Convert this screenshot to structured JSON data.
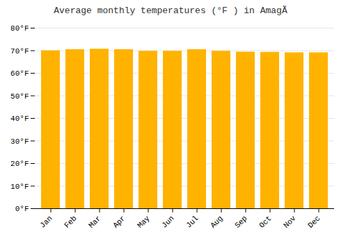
{
  "chart_data": {
    "type": "bar",
    "title": "Average monthly temperatures (°F ) in AmagÃ",
    "categories": [
      "Jan",
      "Feb",
      "Mar",
      "Apr",
      "May",
      "Jun",
      "Jul",
      "Aug",
      "Sep",
      "Oct",
      "Nov",
      "Dec"
    ],
    "values": [
      70.0,
      70.5,
      70.7,
      70.5,
      69.8,
      69.8,
      70.5,
      69.8,
      69.4,
      69.3,
      69.1,
      69.1
    ],
    "color": "#FFB300",
    "ylim": [
      0,
      80
    ],
    "yticks": [
      {
        "value": 0,
        "label": "0°F"
      },
      {
        "value": 10,
        "label": "10°F"
      },
      {
        "value": 20,
        "label": "20°F"
      },
      {
        "value": 30,
        "label": "30°F"
      },
      {
        "value": 40,
        "label": "40°F"
      },
      {
        "value": 50,
        "label": "50°F"
      },
      {
        "value": 60,
        "label": "60°F"
      },
      {
        "value": 70,
        "label": "70°F"
      },
      {
        "value": 80,
        "label": "80°F"
      }
    ],
    "grid": true
  }
}
